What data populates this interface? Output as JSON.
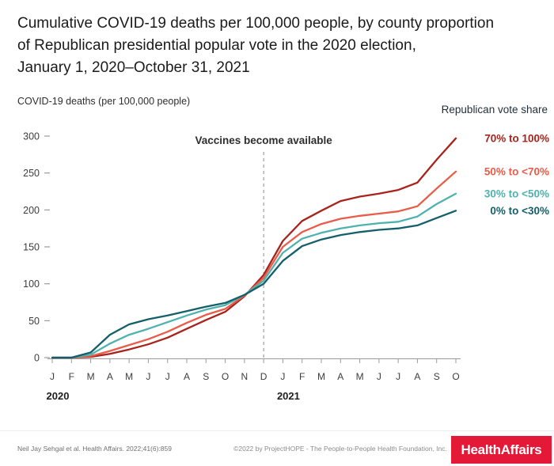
{
  "title": {
    "lines": [
      "Cumulative COVID-19 deaths per 100,000 people, by county proportion",
      "of Republican presidential popular vote in the 2020 election,",
      "January 1, 2020–October 31, 2021"
    ]
  },
  "chart_data": {
    "type": "line",
    "title": "Cumulative COVID-19 deaths per 100,000 people, by county proportion of Republican presidential popular vote in the 2020 election, January 1, 2020–October 31, 2021",
    "ylabel": "COVID-19 deaths (per 100,000 people)",
    "legend_title": "Republican vote share",
    "legend_position": "right",
    "grid": false,
    "ylim": [
      0,
      300
    ],
    "y_ticks": [
      0,
      50,
      100,
      150,
      200,
      250,
      300
    ],
    "x": [
      "Jan 2020",
      "Feb 2020",
      "Mar 2020",
      "Apr 2020",
      "May 2020",
      "Jun 2020",
      "Jul 2020",
      "Aug 2020",
      "Sep 2020",
      "Oct 2020",
      "Nov 2020",
      "Dec 2020",
      "Jan 2021",
      "Feb 2021",
      "Mar 2021",
      "Apr 2021",
      "May 2021",
      "Jun 2021",
      "Jul 2021",
      "Aug 2021",
      "Sep 2021",
      "Oct 2021"
    ],
    "x_tick_labels": [
      "J",
      "F",
      "M",
      "A",
      "M",
      "J",
      "J",
      "A",
      "S",
      "O",
      "N",
      "D",
      "J",
      "F",
      "M",
      "A",
      "M",
      "J",
      "J",
      "A",
      "S",
      "O"
    ],
    "year_labels": [
      {
        "text": "2020",
        "x_index": 0
      },
      {
        "text": "2021",
        "x_index": 12
      }
    ],
    "annotation": {
      "text": "Vaccines become available",
      "x_index": 11,
      "style": "dashed-vertical-line"
    },
    "series": [
      {
        "name": "70% to 100%",
        "color": "#a8231c",
        "values": [
          0,
          0,
          1,
          5,
          11,
          18,
          27,
          39,
          51,
          62,
          83,
          112,
          158,
          185,
          199,
          212,
          218,
          222,
          227,
          237,
          268,
          297
        ]
      },
      {
        "name": "50% to <70%",
        "color": "#e95c49",
        "values": [
          0,
          0,
          2,
          9,
          17,
          25,
          35,
          47,
          58,
          66,
          84,
          108,
          150,
          170,
          181,
          188,
          192,
          195,
          198,
          205,
          229,
          252
        ]
      },
      {
        "name": "30% to <50%",
        "color": "#4fb2ae",
        "values": [
          0,
          0,
          4,
          19,
          31,
          39,
          48,
          57,
          65,
          71,
          85,
          104,
          142,
          161,
          169,
          175,
          179,
          182,
          184,
          191,
          208,
          222
        ]
      },
      {
        "name": "0% to <30%",
        "color": "#155f6b",
        "values": [
          0,
          0,
          7,
          31,
          45,
          52,
          57,
          63,
          69,
          74,
          85,
          100,
          131,
          151,
          160,
          166,
          170,
          173,
          175,
          179,
          189,
          199
        ]
      }
    ]
  },
  "footer": {
    "citation": "Neil Jay Sehgal et al. Health Affairs. 2022;41(6):859",
    "copyright": "©2022 by ProjectHOPE - The People-to-People Health Foundation, Inc.",
    "logo": "HealthAffairs",
    "logo_bg": "#e31937"
  }
}
